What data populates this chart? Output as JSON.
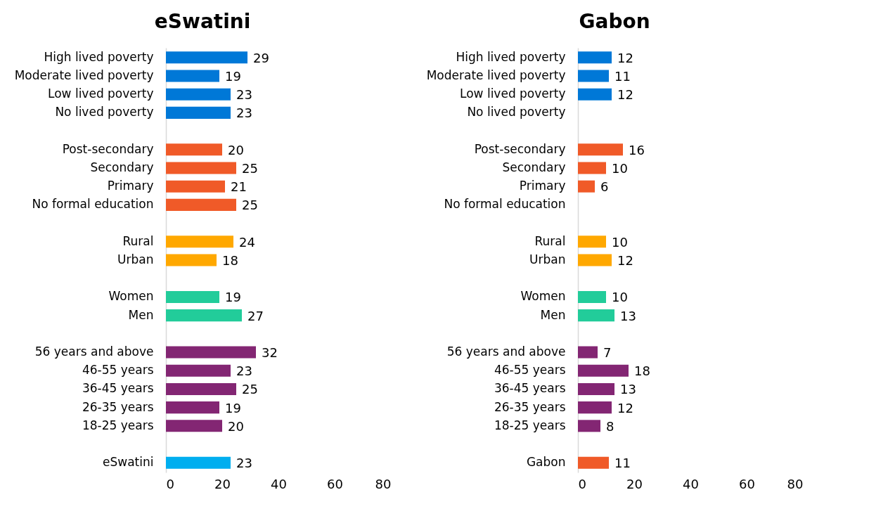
{
  "chart_data": [
    {
      "type": "bar",
      "orientation": "horizontal",
      "title": "eSwatini",
      "categories": [
        "High lived poverty",
        "Moderate lived poverty",
        "Low lived poverty",
        "No lived poverty",
        null,
        "Post-secondary",
        "Secondary",
        "Primary",
        "No formal education",
        null,
        "Rural",
        "Urban",
        null,
        "Women",
        "Men",
        null,
        "56 years and above",
        "46-55 years",
        "36-45 years",
        "26-35 years",
        "18-25 years",
        null,
        "eSwatini"
      ],
      "values": [
        29,
        19,
        23,
        23,
        null,
        20,
        25,
        21,
        25,
        null,
        24,
        18,
        null,
        19,
        27,
        null,
        32,
        23,
        25,
        19,
        20,
        null,
        23
      ],
      "colors": [
        "#0078d7",
        "#0078d7",
        "#0078d7",
        "#0078d7",
        null,
        "#f05a28",
        "#f05a28",
        "#f05a28",
        "#f05a28",
        null,
        "#ffa800",
        "#ffa800",
        null,
        "#22cc9a",
        "#22cc9a",
        null,
        "#832673",
        "#832673",
        "#832673",
        "#832673",
        "#832673",
        null,
        "#00aeef"
      ],
      "xlim": [
        0,
        80
      ],
      "xticks": [
        0,
        20,
        40,
        60,
        80
      ],
      "data_labels": true
    },
    {
      "type": "bar",
      "orientation": "horizontal",
      "title": "Gabon",
      "categories": [
        "High lived poverty",
        "Moderate lived poverty",
        "Low lived poverty",
        "No lived poverty",
        null,
        "Post-secondary",
        "Secondary",
        "Primary",
        "No formal education",
        null,
        "Rural",
        "Urban",
        null,
        "Women",
        "Men",
        null,
        "56 years and above",
        "46-55 years",
        "36-45 years",
        "26-35 years",
        "18-25 years",
        null,
        "Gabon"
      ],
      "values": [
        12,
        11,
        12,
        null,
        null,
        16,
        10,
        6,
        null,
        null,
        10,
        12,
        null,
        10,
        13,
        null,
        7,
        18,
        13,
        12,
        8,
        null,
        11
      ],
      "colors": [
        "#0078d7",
        "#0078d7",
        "#0078d7",
        null,
        null,
        "#f05a28",
        "#f05a28",
        "#f05a28",
        null,
        null,
        "#ffa800",
        "#ffa800",
        null,
        "#22cc9a",
        "#22cc9a",
        null,
        "#832673",
        "#832673",
        "#832673",
        "#832673",
        "#832673",
        null,
        "#f05a28"
      ],
      "xlim": [
        0,
        80
      ],
      "xticks": [
        0,
        20,
        40,
        60,
        80
      ],
      "data_labels": true
    }
  ]
}
